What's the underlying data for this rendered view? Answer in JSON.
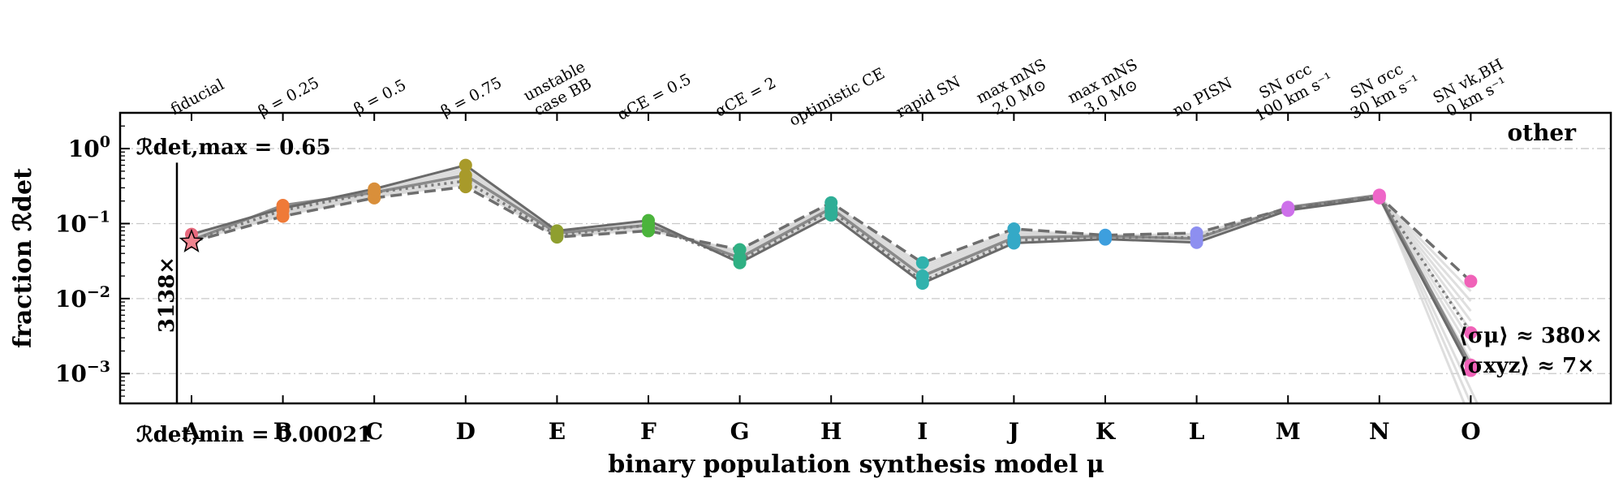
{
  "chart_data": {
    "type": "line",
    "panel_label": "other",
    "xlabel": "binary population synthesis model μ",
    "ylabel": "fraction ℛdet",
    "y_scale": "log",
    "ylim": [
      0.0004,
      3
    ],
    "y_ticks": [
      {
        "value": 1,
        "base": "10",
        "exp": "0"
      },
      {
        "value": 0.1,
        "base": "10",
        "exp": "−1"
      },
      {
        "value": 0.01,
        "base": "10",
        "exp": "−2"
      },
      {
        "value": 0.001,
        "base": "10",
        "exp": "−3"
      }
    ],
    "grid": "horizontal dash-dot",
    "categories": [
      "A",
      "B",
      "C",
      "D",
      "E",
      "F",
      "G",
      "H",
      "I",
      "J",
      "K",
      "L",
      "M",
      "N",
      "O"
    ],
    "top_labels": [
      [
        "fiducial"
      ],
      [
        "β = 0.25"
      ],
      [
        "β = 0.5"
      ],
      [
        "β = 0.75"
      ],
      [
        "unstable",
        "case BB"
      ],
      [
        "αCE = 0.5"
      ],
      [
        "αCE = 2"
      ],
      [
        "optimistic CE"
      ],
      [
        "rapid SN"
      ],
      [
        "max mNS",
        "2.0 M⊙"
      ],
      [
        "max mNS",
        "3.0 M⊙"
      ],
      [
        "no PISN"
      ],
      [
        "SN σcc",
        "100 km s⁻¹"
      ],
      [
        "SN σcc",
        "30 km s⁻¹"
      ],
      [
        "SN vk,BH",
        "0 km s⁻¹"
      ]
    ],
    "colors": [
      "#e8697d",
      "#ef7a38",
      "#d98f3a",
      "#a89a2a",
      "#8f9f2f",
      "#4bb43c",
      "#2fb083",
      "#2fae96",
      "#31b2ad",
      "#34a9c7",
      "#3d9fde",
      "#8d8ff0",
      "#cd70ea",
      "#ee66c8",
      "#f062b8"
    ],
    "series": [
      {
        "values": [
          0.06,
          0.175,
          0.26,
          0.44,
          0.075,
          0.095,
          0.035,
          0.16,
          0.02,
          0.065,
          0.068,
          0.063,
          0.165,
          0.24,
          0.0013
        ],
        "style": "solid"
      },
      {
        "values": [
          0.057,
          0.125,
          0.22,
          0.31,
          0.066,
          0.08,
          0.045,
          0.19,
          0.03,
          0.085,
          0.07,
          0.075,
          0.16,
          0.23,
          0.017
        ],
        "style": "dashed"
      },
      {
        "values": [
          0.06,
          0.15,
          0.26,
          0.37,
          0.07,
          0.095,
          0.032,
          0.15,
          0.017,
          0.06,
          0.066,
          0.065,
          0.16,
          0.235,
          0.0035
        ],
        "style": "dotted"
      },
      {
        "values": [
          0.072,
          0.16,
          0.29,
          0.6,
          0.08,
          0.11,
          0.03,
          0.13,
          0.016,
          0.055,
          0.062,
          0.056,
          0.15,
          0.22,
          0.0011
        ],
        "style": "solid-dark"
      }
    ],
    "faint_series_count": 8,
    "fiducial_marker": {
      "category": "A",
      "value": 0.057,
      "shape": "star"
    },
    "range_bar": {
      "max": 0.65,
      "min": 0.00021,
      "factor_label": "3138×"
    },
    "annotations": {
      "max_label": "ℛdet,max = 0.65",
      "min_label": "ℛdet,min = 0.00021",
      "sigma_mu": "⟨σμ⟩ ≈ 380×",
      "sigma_xyz": "⟨σxyz⟩ ≈ 7×"
    }
  }
}
